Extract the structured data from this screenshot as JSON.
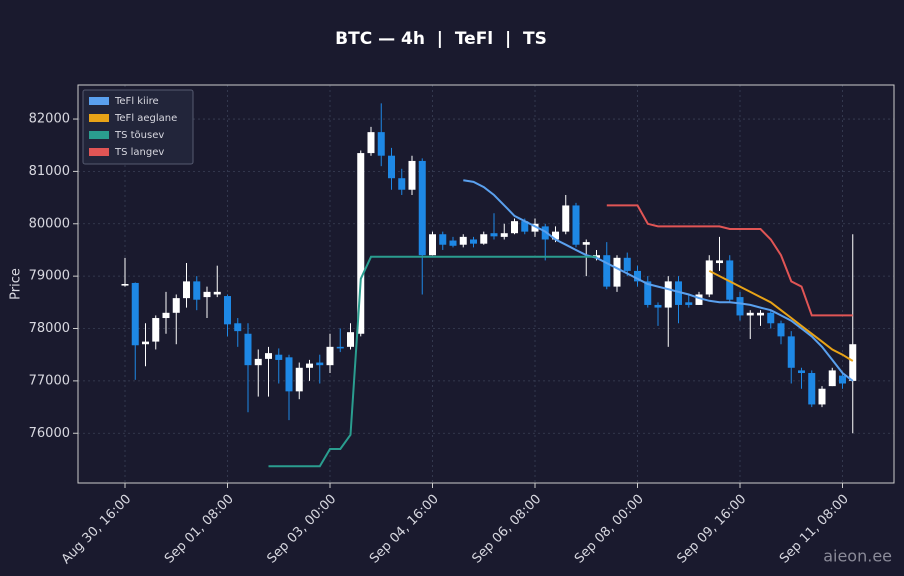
{
  "chart_data": {
    "type": "candlestick",
    "title": "BTC — 4h  |  TeFl  |  TS",
    "y_label": "Price",
    "watermark": "aieon.ee",
    "x": [
      "Aug 30, 16:00",
      "Aug 30, 20:00",
      "Aug 31, 00:00",
      "Aug 31, 04:00",
      "Aug 31, 08:00",
      "Aug 31, 12:00",
      "Aug 31, 16:00",
      "Aug 31, 20:00",
      "Sep 01, 00:00",
      "Sep 01, 04:00",
      "Sep 01, 08:00",
      "Sep 01, 12:00",
      "Sep 01, 16:00",
      "Sep 01, 20:00",
      "Sep 02, 00:00",
      "Sep 02, 04:00",
      "Sep 02, 08:00",
      "Sep 02, 12:00",
      "Sep 02, 16:00",
      "Sep 02, 20:00",
      "Sep 03, 00:00",
      "Sep 03, 04:00",
      "Sep 03, 08:00",
      "Sep 03, 12:00",
      "Sep 03, 16:00",
      "Sep 03, 20:00",
      "Sep 04, 00:00",
      "Sep 04, 04:00",
      "Sep 04, 08:00",
      "Sep 04, 12:00",
      "Sep 04, 16:00",
      "Sep 04, 20:00",
      "Sep 05, 00:00",
      "Sep 05, 04:00",
      "Sep 05, 08:00",
      "Sep 05, 12:00",
      "Sep 05, 16:00",
      "Sep 05, 20:00",
      "Sep 06, 00:00",
      "Sep 06, 04:00",
      "Sep 06, 08:00",
      "Sep 06, 12:00",
      "Sep 06, 16:00",
      "Sep 06, 20:00",
      "Sep 07, 00:00",
      "Sep 07, 04:00",
      "Sep 07, 08:00",
      "Sep 07, 12:00",
      "Sep 07, 16:00",
      "Sep 07, 20:00",
      "Sep 08, 00:00",
      "Sep 08, 04:00",
      "Sep 08, 08:00",
      "Sep 08, 12:00",
      "Sep 08, 16:00",
      "Sep 08, 20:00",
      "Sep 09, 00:00",
      "Sep 09, 04:00",
      "Sep 09, 08:00",
      "Sep 09, 12:00",
      "Sep 09, 16:00",
      "Sep 09, 20:00",
      "Sep 10, 00:00",
      "Sep 10, 04:00",
      "Sep 10, 08:00",
      "Sep 10, 12:00",
      "Sep 10, 16:00",
      "Sep 10, 20:00",
      "Sep 11, 00:00",
      "Sep 11, 04:00",
      "Sep 11, 08:00",
      "Sep 11, 12:00"
    ],
    "open": [
      78820,
      78870,
      77700,
      77750,
      78200,
      78300,
      78580,
      78900,
      78600,
      78650,
      78620,
      78100,
      77900,
      77300,
      77420,
      77500,
      77450,
      76800,
      77250,
      77350,
      77300,
      77650,
      77650,
      77900,
      81350,
      81750,
      81300,
      80870,
      80650,
      81200,
      79400,
      79800,
      79680,
      79600,
      79700,
      79620,
      79820,
      79750,
      79820,
      80050,
      79850,
      79950,
      79700,
      79850,
      80350,
      79600,
      79350,
      79400,
      78800,
      79350,
      79100,
      78900,
      78450,
      78400,
      78900,
      78500,
      78450,
      78650,
      79250,
      79300,
      78600,
      78250,
      78250,
      78300,
      78100,
      77850,
      77200,
      77150,
      76550,
      76900,
      77100,
      77000
    ],
    "high": [
      79350,
      78880,
      78100,
      78250,
      78700,
      78650,
      79250,
      79000,
      78800,
      79200,
      78650,
      78200,
      78100,
      77600,
      77650,
      77620,
      77500,
      77350,
      77400,
      77500,
      77900,
      78000,
      78100,
      81400,
      81850,
      82300,
      81450,
      81050,
      81300,
      81250,
      79850,
      79850,
      79750,
      79800,
      79750,
      79850,
      80200,
      80000,
      80100,
      80100,
      80100,
      80000,
      79950,
      80550,
      80400,
      79700,
      79500,
      79650,
      79400,
      79450,
      79200,
      79000,
      78500,
      79000,
      79000,
      78650,
      78700,
      79400,
      79750,
      79400,
      78700,
      78350,
      78350,
      78350,
      78150,
      77950,
      77250,
      77200,
      76900,
      77250,
      77150,
      79800
    ],
    "low": [
      78800,
      77020,
      77280,
      77600,
      77900,
      77700,
      78400,
      78350,
      78200,
      78600,
      77850,
      77650,
      76400,
      76700,
      76700,
      76950,
      76250,
      76650,
      77000,
      76950,
      77150,
      77550,
      77600,
      77850,
      81300,
      81100,
      80650,
      80550,
      80550,
      78650,
      79400,
      79500,
      79550,
      79550,
      79550,
      79600,
      79700,
      79700,
      79800,
      79800,
      79750,
      79300,
      79650,
      79800,
      79550,
      79000,
      79300,
      78750,
      78700,
      79000,
      78800,
      78400,
      78050,
      77650,
      78100,
      78400,
      78450,
      78600,
      79100,
      78500,
      78150,
      77800,
      78050,
      78000,
      77700,
      76950,
      76850,
      76500,
      76500,
      76900,
      76850,
      76000
    ],
    "close": [
      78850,
      77680,
      77750,
      78200,
      78300,
      78580,
      78900,
      78550,
      78700,
      78700,
      78080,
      77950,
      77300,
      77420,
      77530,
      77400,
      76800,
      77250,
      77330,
      77300,
      77650,
      77620,
      77930,
      81350,
      81750,
      81300,
      80870,
      80650,
      81200,
      79400,
      79800,
      79600,
      79580,
      79750,
      79620,
      79800,
      79760,
      79820,
      80050,
      79850,
      80000,
      79700,
      79850,
      80350,
      79600,
      79650,
      79400,
      78800,
      79350,
      79100,
      78900,
      78450,
      78400,
      78900,
      78450,
      78450,
      78650,
      79300,
      79300,
      78550,
      78250,
      78300,
      78300,
      78100,
      77850,
      77250,
      77150,
      76550,
      76850,
      77200,
      76950,
      77700
    ],
    "up_color": "#ffffff",
    "down_color": "#1e88e5",
    "overlays": [
      {
        "name": "TeFl kiire",
        "color": "#5aa0ee",
        "values": [
          null,
          null,
          null,
          null,
          null,
          null,
          null,
          null,
          null,
          null,
          null,
          null,
          null,
          null,
          null,
          null,
          null,
          null,
          null,
          null,
          null,
          null,
          null,
          null,
          null,
          null,
          null,
          null,
          null,
          null,
          null,
          null,
          null,
          80830,
          80800,
          80700,
          80550,
          80350,
          80150,
          80050,
          79950,
          79850,
          79700,
          79600,
          79500,
          79400,
          79350,
          79250,
          79150,
          79050,
          78950,
          78850,
          78800,
          78750,
          78700,
          78650,
          78580,
          78530,
          78500,
          78500,
          78480,
          78450,
          78400,
          78350,
          78250,
          78150,
          78000,
          77850,
          77650,
          77400,
          77150,
          77000
        ]
      },
      {
        "name": "TeFl aeglane",
        "color": "#e8a317",
        "values": [
          null,
          null,
          null,
          null,
          null,
          null,
          null,
          null,
          null,
          null,
          null,
          null,
          null,
          null,
          null,
          null,
          null,
          null,
          null,
          null,
          null,
          null,
          null,
          null,
          null,
          null,
          null,
          null,
          null,
          null,
          null,
          null,
          null,
          null,
          null,
          null,
          null,
          null,
          null,
          null,
          null,
          null,
          null,
          null,
          null,
          null,
          null,
          null,
          null,
          null,
          null,
          null,
          null,
          null,
          null,
          null,
          null,
          79100,
          79000,
          78900,
          78800,
          78700,
          78600,
          78500,
          78350,
          78200,
          78050,
          77900,
          77750,
          77600,
          77500,
          77380
        ]
      },
      {
        "name": "TS tõusev",
        "color": "#2a9d8f",
        "values": [
          null,
          null,
          null,
          null,
          null,
          null,
          null,
          null,
          null,
          null,
          null,
          null,
          null,
          null,
          75370,
          75370,
          75370,
          75370,
          75370,
          75370,
          75700,
          75700,
          75970,
          78950,
          79370,
          79370,
          79370,
          79370,
          79370,
          79370,
          79370,
          79370,
          79370,
          79370,
          79370,
          79370,
          79370,
          79370,
          79370,
          79370,
          79370,
          79370,
          79370,
          79370,
          79370,
          79370,
          79370,
          null,
          null,
          null,
          null,
          null,
          null,
          null,
          null,
          null,
          null,
          null,
          null,
          null,
          null,
          null,
          null,
          null,
          null,
          null,
          null,
          null,
          null,
          null,
          null,
          null
        ]
      },
      {
        "name": "TS langev",
        "color": "#e05555",
        "values": [
          null,
          null,
          null,
          null,
          null,
          null,
          null,
          null,
          null,
          null,
          null,
          null,
          null,
          null,
          null,
          null,
          null,
          null,
          null,
          null,
          null,
          null,
          null,
          null,
          null,
          null,
          null,
          null,
          null,
          null,
          null,
          null,
          null,
          null,
          null,
          null,
          null,
          null,
          null,
          null,
          null,
          null,
          null,
          null,
          null,
          null,
          null,
          80350,
          80350,
          80350,
          80350,
          80000,
          79950,
          79950,
          79950,
          79950,
          79950,
          79950,
          79950,
          79900,
          79900,
          79900,
          79900,
          79700,
          79400,
          78900,
          78800,
          78250,
          78250,
          78250,
          78250,
          78250
        ]
      }
    ],
    "ylim": [
      75050,
      82650
    ],
    "yticks": [
      76000,
      77000,
      78000,
      79000,
      80000,
      81000,
      82000
    ],
    "xticks": [
      "Aug 30, 16:00",
      "Sep 01, 08:00",
      "Sep 03, 00:00",
      "Sep 04, 16:00",
      "Sep 06, 08:00",
      "Sep 08, 00:00",
      "Sep 09, 16:00",
      "Sep 11, 08:00"
    ],
    "grid": true,
    "legend": "upper left"
  }
}
